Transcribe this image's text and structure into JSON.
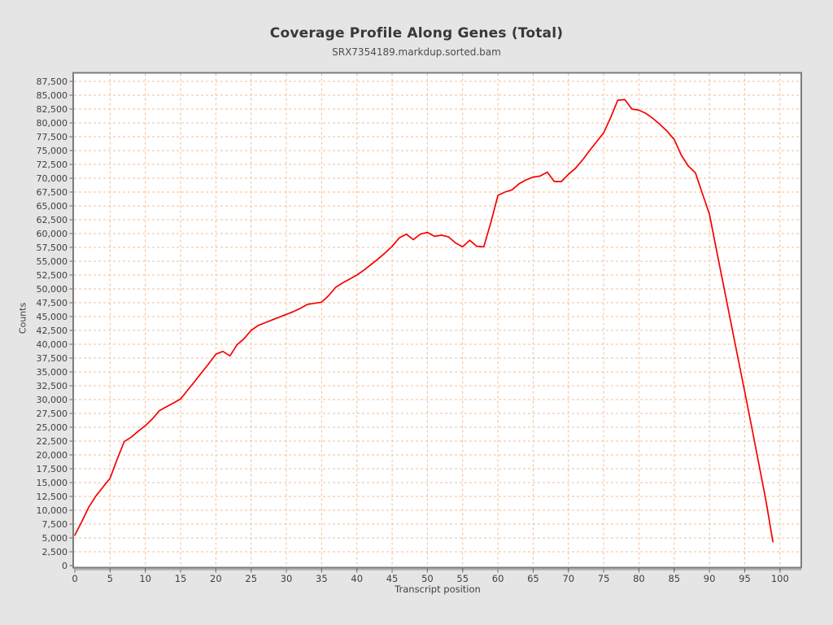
{
  "page": {
    "background": "#e5e5e5"
  },
  "header": {
    "title": "Coverage Profile Along Genes (Total)",
    "subtitle": "SRX7354189.markdup.sorted.bam"
  },
  "chart_data": {
    "type": "line",
    "title": "Coverage Profile Along Genes (Total)",
    "subtitle": "SRX7354189.markdup.sorted.bam",
    "xlabel": "Transcript position",
    "ylabel": "Counts",
    "xlim": [
      0,
      103
    ],
    "ylim": [
      0,
      89000
    ],
    "x_ticks": [
      0,
      5,
      10,
      15,
      20,
      25,
      30,
      35,
      40,
      45,
      50,
      55,
      60,
      65,
      70,
      75,
      80,
      85,
      90,
      95,
      100
    ],
    "y_tick_step": 2500,
    "y_tick_max": 87500,
    "grid": true,
    "legend_position": "none",
    "colors": {
      "line": "#f50000",
      "grid": "#f3bd93",
      "plot_border": "#7c7c7c",
      "tick_text": "#3f3f3f",
      "tick_mark": "#666666",
      "plot_background": "#ffffff"
    },
    "series": [
      {
        "name": "SRX7354189.markdup.sorted.bam",
        "x_start": 0,
        "x_step": 1,
        "values": [
          5500,
          8000,
          10600,
          12600,
          14200,
          15800,
          19200,
          22400,
          23200,
          24300,
          25300,
          26500,
          28000,
          28700,
          29400,
          30100,
          31700,
          33300,
          34900,
          36500,
          38200,
          38700,
          37900,
          39900,
          41000,
          42500,
          43400,
          43900,
          44400,
          44900,
          45400,
          45900,
          46500,
          47200,
          47400,
          47600,
          48800,
          50300,
          51100,
          51800,
          52500,
          53400,
          54400,
          55400,
          56500,
          57700,
          59200,
          59900,
          58900,
          59900,
          60200,
          59500,
          59700,
          59400,
          58300,
          57600,
          58800,
          57700,
          57600,
          62000,
          66900,
          67500,
          67900,
          69000,
          69700,
          70200,
          70400,
          71100,
          69400,
          69400,
          70700,
          71800,
          73300,
          75000,
          76600,
          78200,
          81000,
          84100,
          84200,
          82500,
          82300,
          81700,
          80800,
          79700,
          78500,
          77000,
          74200,
          72200,
          71000,
          67200,
          63500,
          57000,
          50600,
          44200,
          37800,
          31400,
          25000,
          18400,
          11800,
          4300
        ]
      }
    ]
  }
}
